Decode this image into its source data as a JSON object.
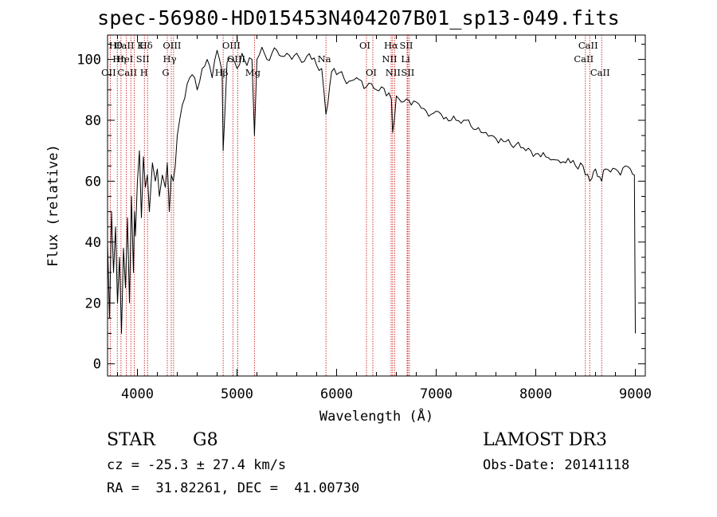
{
  "title": "spec-56980-HD015453N404207B01_sp13-049.fits",
  "info": {
    "class_label": "STAR",
    "subclass": "G8",
    "survey": "LAMOST DR3",
    "cz": "cz = -25.3 ± 27.4 km/s",
    "obs_date": "Obs-Date: 20141118",
    "coords": "RA =  31.82261, DEC =  41.00730"
  },
  "chart_data": {
    "type": "line",
    "title": "spec-56980-HD015453N404207B01_sp13-049.fits",
    "xlabel": "Wavelength (Å)",
    "ylabel": "Flux (relative)",
    "xlim": [
      3700,
      9100
    ],
    "ylim": [
      -4,
      108
    ],
    "xticks": [
      4000,
      5000,
      6000,
      7000,
      8000,
      9000
    ],
    "yticks": [
      0,
      20,
      40,
      60,
      80,
      100
    ],
    "grid": false,
    "line_color": "#000000",
    "marker_color": "#cc2222",
    "spectrum": {
      "x": [
        3700,
        3720,
        3740,
        3760,
        3780,
        3800,
        3820,
        3840,
        3860,
        3880,
        3900,
        3920,
        3940,
        3960,
        3970,
        3980,
        4000,
        4020,
        4040,
        4060,
        4080,
        4100,
        4120,
        4150,
        4180,
        4200,
        4220,
        4250,
        4280,
        4300,
        4320,
        4340,
        4360,
        4380,
        4400,
        4450,
        4500,
        4550,
        4600,
        4650,
        4700,
        4750,
        4800,
        4850,
        4861,
        4900,
        4950,
        5000,
        5050,
        5100,
        5150,
        5175,
        5200,
        5250,
        5300,
        5350,
        5400,
        5450,
        5500,
        5550,
        5600,
        5650,
        5700,
        5750,
        5800,
        5850,
        5893,
        5950,
        6000,
        6050,
        6100,
        6150,
        6200,
        6250,
        6300,
        6350,
        6400,
        6450,
        6500,
        6550,
        6563,
        6600,
        6650,
        6700,
        6750,
        6800,
        6850,
        6900,
        6950,
        7000,
        7050,
        7100,
        7150,
        7200,
        7250,
        7300,
        7350,
        7400,
        7450,
        7500,
        7550,
        7600,
        7650,
        7700,
        7750,
        7800,
        7850,
        7900,
        7950,
        8000,
        8050,
        8100,
        8150,
        8200,
        8250,
        8300,
        8350,
        8400,
        8450,
        8498,
        8542,
        8600,
        8662,
        8700,
        8750,
        8800,
        8850,
        8900,
        8950,
        8990,
        9000
      ],
      "y": [
        40,
        15,
        50,
        30,
        45,
        20,
        35,
        10,
        38,
        25,
        48,
        20,
        55,
        30,
        50,
        42,
        60,
        70,
        48,
        68,
        58,
        62,
        50,
        66,
        60,
        64,
        55,
        62,
        58,
        66,
        50,
        62,
        60,
        65,
        75,
        85,
        92,
        95,
        90,
        97,
        100,
        94,
        103,
        96,
        70,
        99,
        100,
        97,
        102,
        98,
        100,
        75,
        100,
        104,
        100,
        102,
        103,
        101,
        102,
        100,
        102,
        99,
        101,
        100,
        98,
        97,
        82,
        96,
        95,
        96,
        92,
        93,
        94,
        93,
        91,
        92,
        90,
        91,
        88,
        87,
        76,
        88,
        86,
        87,
        85,
        86,
        84,
        83,
        82,
        83,
        82,
        81,
        80,
        80,
        79,
        80,
        78,
        77,
        76,
        76,
        75,
        74,
        74,
        73,
        72,
        72,
        71,
        70,
        70,
        69,
        68,
        68,
        67,
        67,
        66,
        66,
        66,
        65,
        66,
        62,
        60,
        64,
        60,
        64,
        63,
        64,
        62,
        65,
        64,
        62,
        10
      ]
    },
    "lines": [
      {
        "name": "Hθ",
        "wl": 3798,
        "row": 0
      },
      {
        "name": "OII",
        "wl": 3727,
        "row": 2
      },
      {
        "name": "Hη",
        "wl": 3835,
        "row": 1
      },
      {
        "name": "CaII K",
        "wl": 3934,
        "row": 0
      },
      {
        "name": "CaII H",
        "wl": 3969,
        "row": 2
      },
      {
        "name": "HeI",
        "wl": 3889,
        "row": 1
      },
      {
        "name": "SII",
        "wl": 4070,
        "row": 1
      },
      {
        "name": "Hδ",
        "wl": 4102,
        "row": 0
      },
      {
        "name": "OIII",
        "wl": 4363,
        "row": 0
      },
      {
        "name": "Hγ",
        "wl": 4340,
        "row": 1
      },
      {
        "name": "G",
        "wl": 4300,
        "row": 2
      },
      {
        "name": "Hβ",
        "wl": 4861,
        "row": 2
      },
      {
        "name": "OIII",
        "wl": 4959,
        "row": 0
      },
      {
        "name": "OIII",
        "wl": 5007,
        "row": 1
      },
      {
        "name": "Mg",
        "wl": 5175,
        "row": 2
      },
      {
        "name": "Na",
        "wl": 5893,
        "row": 1
      },
      {
        "name": "OI",
        "wl": 6300,
        "row": 0
      },
      {
        "name": "OI",
        "wl": 6364,
        "row": 2
      },
      {
        "name": "Hα",
        "wl": 6563,
        "row": 0
      },
      {
        "name": "NII",
        "wl": 6548,
        "row": 1
      },
      {
        "name": "NII",
        "wl": 6583,
        "row": 2
      },
      {
        "name": "SII",
        "wl": 6716,
        "row": 0
      },
      {
        "name": "Li",
        "wl": 6708,
        "row": 1
      },
      {
        "name": "SII",
        "wl": 6731,
        "row": 2
      },
      {
        "name": "CaII",
        "wl": 8498,
        "row": 1
      },
      {
        "name": "CaII",
        "wl": 8542,
        "row": 0
      },
      {
        "name": "CaII",
        "wl": 8662,
        "row": 2
      }
    ]
  }
}
